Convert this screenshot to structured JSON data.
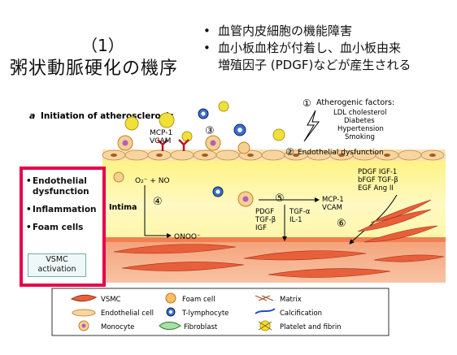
{
  "title": {
    "number": "（1）",
    "main": "粥状動脈硬化の機序"
  },
  "bullets": [
    "血管内皮細胞の機能障害",
    "血小板血栓が付着し、血小板由来",
    "増殖因子 (PDGF)などが産生される"
  ],
  "sidebox": {
    "items": [
      "Endothelial dysfunction",
      "Inflammation",
      "Foam cells"
    ],
    "vsmc_label": [
      "VSMC",
      "activation"
    ]
  },
  "figure": {
    "heading": "Initiation of atherosclerosis",
    "heading_letter": "a",
    "factors_num": "①",
    "factors_title": "Atherogenic factors:",
    "factors": [
      "LDL cholesterol",
      "Diabetes",
      "Hypertension",
      "Smoking"
    ],
    "n2": "②",
    "n2_label": "Endothelial dysfunction",
    "n3": "③",
    "n4": "④",
    "n5": "⑤",
    "n6": "⑥",
    "mcp_left": [
      "MCP-1",
      "VCAM"
    ],
    "o2_label": "O₂⁻ + NO",
    "intima": "Intima",
    "onoo": "ONOO⁻",
    "pdgf_mid": [
      "PDGF",
      "TGF-β",
      "IGF"
    ],
    "tgfa": [
      "TGF-α",
      "IL-1"
    ],
    "mcp_right": [
      "MCP-1",
      "VCAM"
    ],
    "pdgf_right": [
      "PDGF  IGF-1",
      "bFGF  TGF-β",
      "EGF    Ang II"
    ]
  },
  "legend": {
    "vsmc": "VSMC",
    "foam": "Foam cell",
    "matrix": "Matrix",
    "endo": "Endothelial cell",
    "tlym": "T-lymphocyte",
    "calc": "Calcification",
    "mono": "Monocyte",
    "fibro": "Fibroblast",
    "plate": "Platelet and fibrin"
  }
}
